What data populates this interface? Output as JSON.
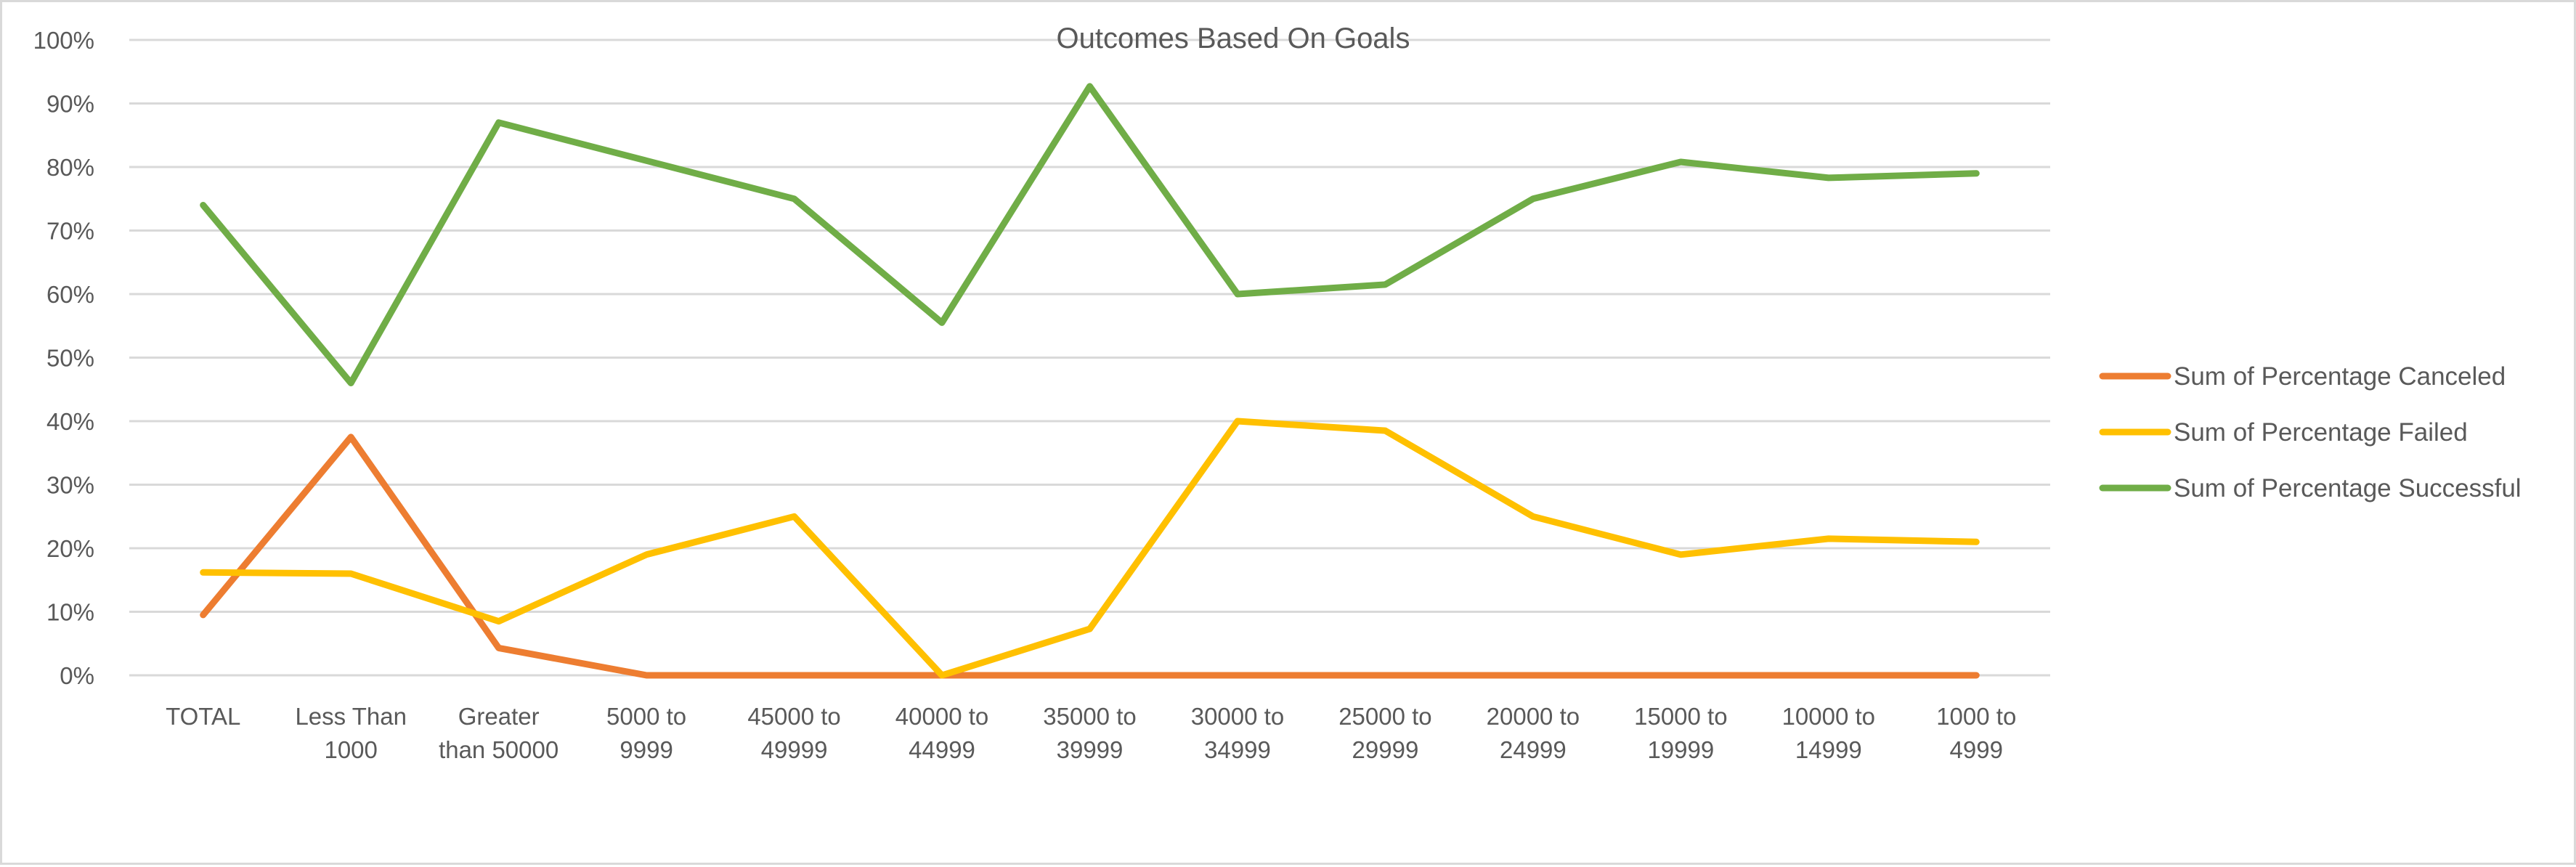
{
  "chart_data": {
    "type": "line",
    "title": "Outcomes Based On Goals",
    "xlabel": "",
    "ylabel": "",
    "ylim": [
      0,
      1
    ],
    "y_ticks": [
      "0%",
      "10%",
      "20%",
      "30%",
      "40%",
      "50%",
      "60%",
      "70%",
      "80%",
      "90%",
      "100%"
    ],
    "grid": true,
    "legend_position": "right",
    "categories": [
      [
        "TOTAL"
      ],
      [
        "Less Than",
        "1000"
      ],
      [
        "Greater",
        "than 50000"
      ],
      [
        "5000 to",
        "9999"
      ],
      [
        "45000 to",
        "49999"
      ],
      [
        "40000 to",
        "44999"
      ],
      [
        "35000 to",
        "39999"
      ],
      [
        "30000 to",
        "34999"
      ],
      [
        "25000 to",
        "29999"
      ],
      [
        "20000 to",
        "24999"
      ],
      [
        "15000 to",
        "19999"
      ],
      [
        "10000 to",
        "14999"
      ],
      [
        "1000 to",
        "4999"
      ]
    ],
    "series": [
      {
        "name": "Sum of Percentage Canceled",
        "color": "#ed7d31",
        "values": [
          0.095,
          0.375,
          0.043,
          0.0,
          0.0,
          0.0,
          0.0,
          0.0,
          0.0,
          0.0,
          0.0,
          0.0,
          0.0
        ]
      },
      {
        "name": "Sum of Percentage Failed",
        "color": "#ffc000",
        "values": [
          0.162,
          0.16,
          0.085,
          0.19,
          0.25,
          0.0,
          0.073,
          0.4,
          0.385,
          0.25,
          0.19,
          0.215,
          0.21
        ]
      },
      {
        "name": "Sum of Percentage Successful",
        "color": "#70ad47",
        "values": [
          0.74,
          0.46,
          0.87,
          0.81,
          0.75,
          0.555,
          0.927,
          0.6,
          0.615,
          0.75,
          0.808,
          0.783,
          0.79
        ]
      }
    ]
  }
}
